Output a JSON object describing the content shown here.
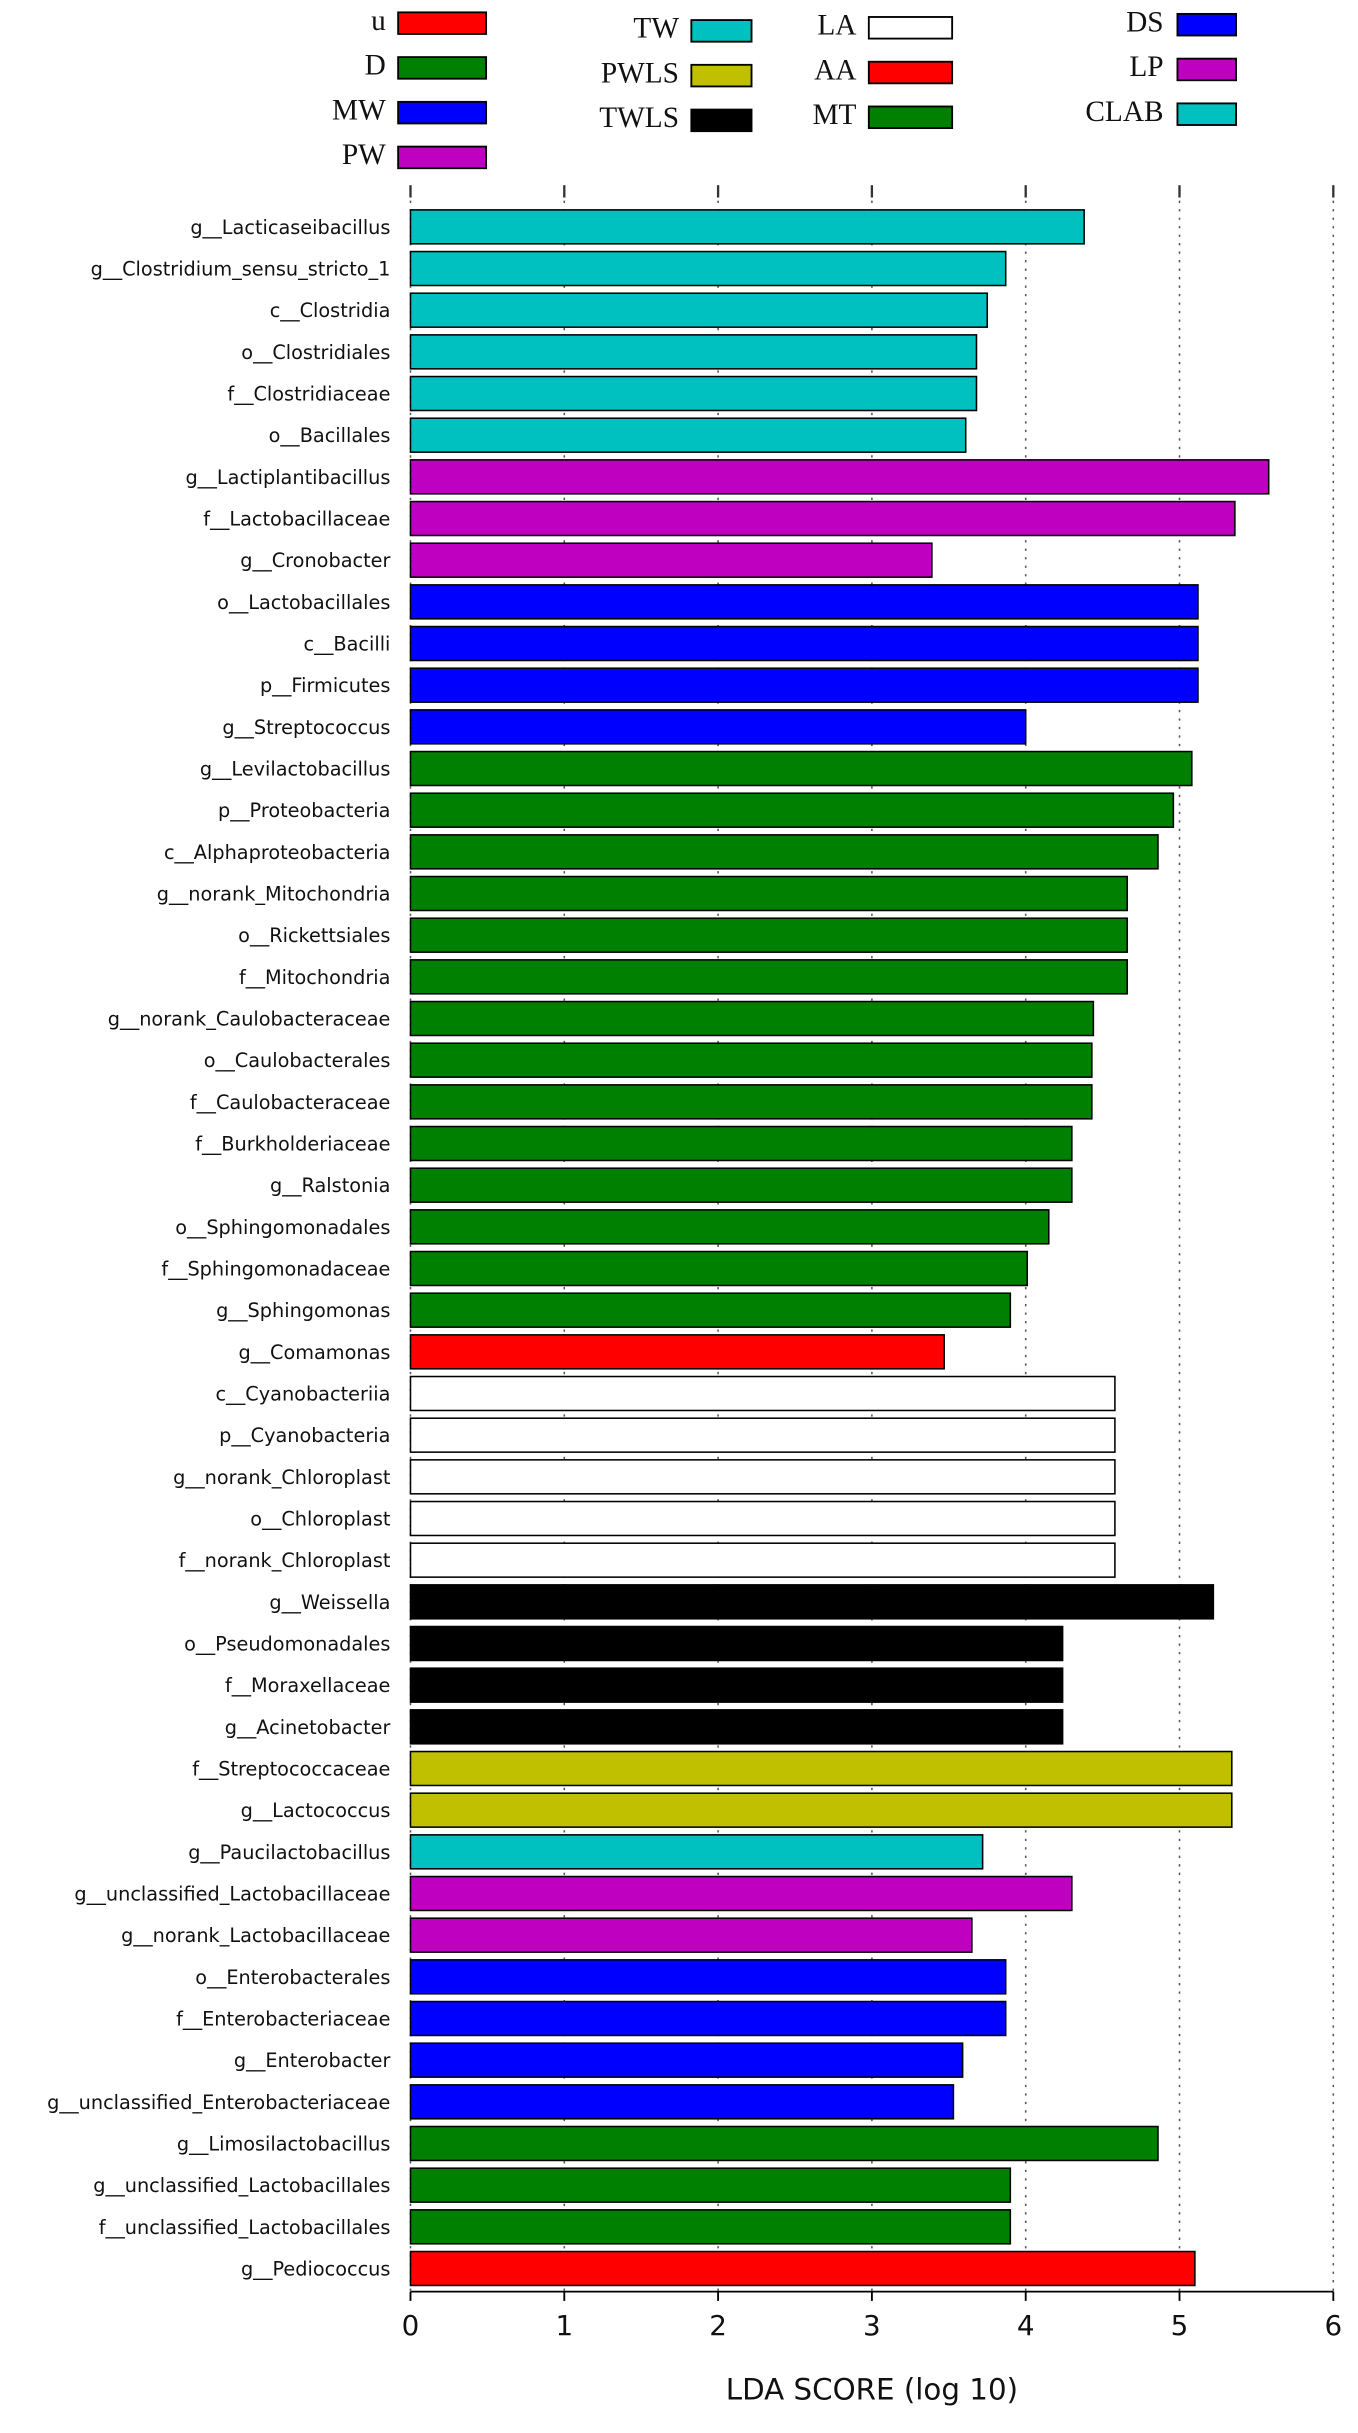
{
  "chart_data": {
    "type": "bar",
    "orientation": "horizontal",
    "xlabel": "LDA SCORE (log 10)",
    "xlim": [
      0,
      6
    ],
    "xticks": [
      0,
      1,
      2,
      3,
      4,
      5,
      6
    ],
    "grid": true,
    "series": [
      {
        "name": "u",
        "color": "#ff0000",
        "categories": [
          "g__Pediococcus"
        ],
        "values": [
          5.1
        ]
      },
      {
        "name": "D",
        "color": "#008000",
        "categories": [
          "g__Limosilactobacillus",
          "g__unclassified_Lactobacillales",
          "f__unclassified_Lactobacillales"
        ],
        "values": [
          4.86,
          3.9,
          3.9
        ]
      },
      {
        "name": "MW",
        "color": "#0000ff",
        "categories": [
          "o__Enterobacterales",
          "f__Enterobacteriaceae",
          "g__Enterobacter",
          "g__unclassified_Enterobacteriaceae"
        ],
        "values": [
          3.87,
          3.87,
          3.59,
          3.53
        ]
      },
      {
        "name": "PW",
        "color": "#c000c0",
        "categories": [
          "g__unclassified_Lactobacillaceae",
          "g__norank_Lactobacillaceae"
        ],
        "values": [
          4.3,
          3.65
        ]
      },
      {
        "name": "TW",
        "color": "#00c0c0",
        "categories": [
          "g__Paucilactobacillus"
        ],
        "values": [
          3.72
        ]
      },
      {
        "name": "PWLS",
        "color": "#c0c000",
        "categories": [
          "f__Streptococcaceae",
          "g__Lactococcus"
        ],
        "values": [
          5.34,
          5.34
        ]
      },
      {
        "name": "TWLS",
        "color": "#000000",
        "categories": [
          "g__Weissella",
          "o__Pseudomonadales",
          "f__Moraxellaceae",
          "g__Acinetobacter"
        ],
        "values": [
          5.22,
          4.24,
          4.24,
          4.24
        ]
      },
      {
        "name": "LA",
        "color": "#ffffff",
        "categories": [
          "c__Cyanobacteriia",
          "p__Cyanobacteria",
          "g__norank_Chloroplast",
          "o__Chloroplast",
          "f__norank_Chloroplast"
        ],
        "values": [
          4.58,
          4.58,
          4.58,
          4.58,
          4.58
        ]
      },
      {
        "name": "AA",
        "color": "#ff0000",
        "categories": [
          "g__Comamonas"
        ],
        "values": [
          3.47
        ]
      },
      {
        "name": "MT",
        "color": "#008000",
        "categories": [
          "g__Levilactobacillus",
          "p__Proteobacteria",
          "c__Alphaproteobacteria",
          "g__norank_Mitochondria",
          "o__Rickettsiales",
          "f__Mitochondria",
          "g__norank_Caulobacteraceae",
          "o__Caulobacterales",
          "f__Caulobacteraceae",
          "f__Burkholderiaceae",
          "g__Ralstonia",
          "o__Sphingomonadales",
          "f__Sphingomonadaceae",
          "g__Sphingomonas"
        ],
        "values": [
          5.08,
          4.96,
          4.86,
          4.66,
          4.66,
          4.66,
          4.44,
          4.43,
          4.43,
          4.3,
          4.3,
          4.15,
          4.01,
          3.9
        ]
      },
      {
        "name": "DS",
        "color": "#0000ff",
        "categories": [
          "o__Lactobacillales",
          "c__Bacilli",
          "p__Firmicutes",
          "g__Streptococcus"
        ],
        "values": [
          5.12,
          5.12,
          5.12,
          4.0
        ]
      },
      {
        "name": "LP",
        "color": "#c000c0",
        "categories": [
          "g__Lactiplantibacillus",
          "f__Lactobacillaceae",
          "g__Cronobacter"
        ],
        "values": [
          5.58,
          5.36,
          3.39
        ]
      },
      {
        "name": "CLAB",
        "color": "#00c0c0",
        "categories": [
          "g__Lacticaseibacillus",
          "g__Clostridium_sensu_stricto_1",
          "c__Clostridia",
          "o__Clostridiales",
          "f__Clostridiaceae",
          "o__Bacillales"
        ],
        "values": [
          4.38,
          3.87,
          3.75,
          3.68,
          3.68,
          3.61
        ]
      }
    ]
  }
}
